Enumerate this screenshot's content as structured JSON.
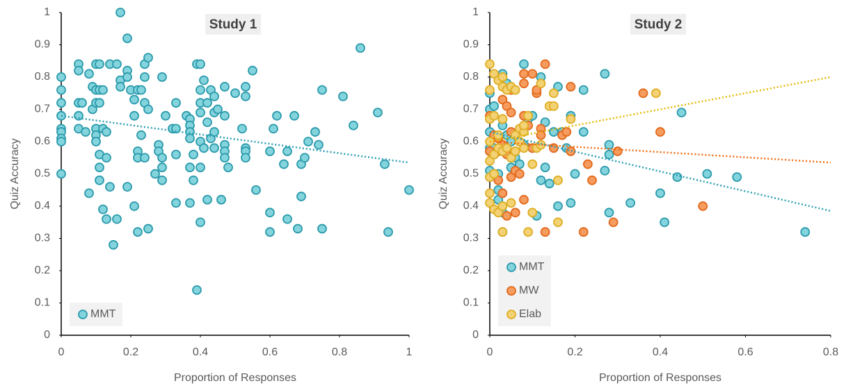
{
  "chart_data": [
    {
      "type": "scatter",
      "title": "Study 1",
      "xlabel": "Proportion of Responses",
      "ylabel": "Quiz Accuracy",
      "xlim": [
        0,
        1
      ],
      "ylim": [
        0,
        1
      ],
      "xticks": [
        0,
        0.2,
        0.4,
        0.6,
        0.8,
        1
      ],
      "yticks": [
        0,
        0.1,
        0.2,
        0.3,
        0.4,
        0.5,
        0.6,
        0.7,
        0.8,
        0.9,
        1
      ],
      "legend": "lower left",
      "series": [
        {
          "name": "MMT",
          "color": "#84d4dd",
          "edgecolor": "#2a9aab",
          "trend_color": "#2b9eb3",
          "trend": [
            0.68,
            0.535
          ],
          "x": [
            0,
            0,
            0,
            0,
            0,
            0,
            0,
            0,
            0,
            0.05,
            0.05,
            0.05,
            0.05,
            0.05,
            0.06,
            0.07,
            0.08,
            0.08,
            0.09,
            0.09,
            0.1,
            0.1,
            0.1,
            0.1,
            0.1,
            0.1,
            0.11,
            0.11,
            0.11,
            0.11,
            0.11,
            0.11,
            0.12,
            0.12,
            0.12,
            0.13,
            0.13,
            0.13,
            0.14,
            0.14,
            0.15,
            0.16,
            0.16,
            0.17,
            0.17,
            0.17,
            0.19,
            0.19,
            0.19,
            0.19,
            0.2,
            0.21,
            0.21,
            0.21,
            0.22,
            0.22,
            0.22,
            0.22,
            0.23,
            0.23,
            0.24,
            0.24,
            0.24,
            0.24,
            0.25,
            0.25,
            0.25,
            0.27,
            0.28,
            0.28,
            0.29,
            0.29,
            0.29,
            0.29,
            0.3,
            0.32,
            0.33,
            0.33,
            0.33,
            0.33,
            0.36,
            0.37,
            0.37,
            0.37,
            0.37,
            0.37,
            0.37,
            0.38,
            0.38,
            0.39,
            0.39,
            0.4,
            0.4,
            0.4,
            0.4,
            0.4,
            0.4,
            0.4,
            0.41,
            0.41,
            0.42,
            0.42,
            0.42,
            0.43,
            0.43,
            0.44,
            0.44,
            0.44,
            0.44,
            0.45,
            0.46,
            0.47,
            0.47,
            0.47,
            0.47,
            0.47,
            0.48,
            0.5,
            0.52,
            0.53,
            0.53,
            0.53,
            0.53,
            0.53,
            0.55,
            0.56,
            0.6,
            0.6,
            0.6,
            0.61,
            0.62,
            0.64,
            0.65,
            0.65,
            0.67,
            0.68,
            0.69,
            0.69,
            0.7,
            0.71,
            0.73,
            0.74,
            0.75,
            0.75,
            0.81,
            0.84,
            0.86,
            0.91,
            0.93,
            0.94,
            1
          ],
          "values": [
            0.8,
            0.76,
            0.72,
            0.68,
            0.64,
            0.63,
            0.61,
            0.6,
            0.5,
            0.84,
            0.82,
            0.72,
            0.68,
            0.64,
            0.72,
            0.63,
            0.81,
            0.44,
            0.77,
            0.7,
            0.84,
            0.76,
            0.72,
            0.64,
            0.62,
            0.6,
            0.84,
            0.76,
            0.72,
            0.56,
            0.52,
            0.48,
            0.76,
            0.64,
            0.39,
            0.63,
            0.55,
            0.36,
            0.84,
            0.46,
            0.28,
            0.84,
            0.36,
            1,
            0.79,
            0.77,
            0.92,
            0.82,
            0.8,
            0.46,
            0.76,
            0.73,
            0.68,
            0.4,
            0.76,
            0.57,
            0.55,
            0.32,
            0.62,
            0.76,
            0.84,
            0.8,
            0.72,
            0.55,
            0.86,
            0.7,
            0.33,
            0.5,
            0.59,
            0.57,
            0.8,
            0.55,
            0.52,
            0.48,
            0.68,
            0.64,
            0.64,
            0.72,
            0.56,
            0.41,
            0.68,
            0.67,
            0.65,
            0.63,
            0.61,
            0.52,
            0.41,
            0.56,
            0.48,
            0.84,
            0.14,
            0.84,
            0.76,
            0.72,
            0.69,
            0.6,
            0.52,
            0.35,
            0.58,
            0.79,
            0.72,
            0.66,
            0.42,
            0.76,
            0.61,
            0.74,
            0.69,
            0.63,
            0.58,
            0.7,
            0.42,
            0.77,
            0.68,
            0.59,
            0.57,
            0.55,
            0.52,
            0.75,
            0.64,
            0.77,
            0.74,
            0.58,
            0.57,
            0.55,
            0.82,
            0.45,
            0.57,
            0.38,
            0.32,
            0.64,
            0.68,
            0.53,
            0.57,
            0.36,
            0.68,
            0.33,
            0.53,
            0.43,
            0.55,
            0.6,
            0.63,
            0.59,
            0.76,
            0.33,
            0.74,
            0.65,
            0.89,
            0.69,
            0.53,
            0.32,
            0.45
          ]
        }
      ]
    },
    {
      "type": "scatter",
      "title": "Study 2",
      "xlabel": "Proportion of Responses",
      "ylabel": "Quiz Accuracy",
      "xlim": [
        0,
        0.8
      ],
      "ylim": [
        0,
        1
      ],
      "xticks": [
        0,
        0.2,
        0.4,
        0.6,
        0.8
      ],
      "yticks": [
        0,
        0.1,
        0.2,
        0.3,
        0.4,
        0.5,
        0.6,
        0.7,
        0.8,
        0.9,
        1
      ],
      "legend": "lower left",
      "series": [
        {
          "name": "MMT",
          "color": "#84d4dd",
          "edgecolor": "#2a9aab",
          "trend_color": "#2b9eb3",
          "trend": [
            0.63,
            0.385
          ],
          "x": [
            0,
            0,
            0,
            0,
            0,
            0,
            0,
            0.01,
            0.01,
            0.01,
            0.02,
            0.02,
            0.02,
            0.03,
            0.03,
            0.03,
            0.03,
            0.04,
            0.04,
            0.05,
            0.05,
            0.06,
            0.07,
            0.08,
            0.08,
            0.09,
            0.1,
            0.1,
            0.11,
            0.12,
            0.12,
            0.13,
            0.13,
            0.14,
            0.15,
            0.16,
            0.16,
            0.17,
            0.18,
            0.19,
            0.19,
            0.2,
            0.22,
            0.22,
            0.27,
            0.27,
            0.28,
            0.28,
            0.28,
            0.33,
            0.4,
            0.41,
            0.44,
            0.45,
            0.51,
            0.58,
            0.74
          ],
          "values": [
            0.75,
            0.7,
            0.63,
            0.58,
            0.57,
            0.51,
            0.49,
            0.71,
            0.58,
            0.56,
            0.5,
            0.45,
            0.42,
            0.81,
            0.65,
            0.38,
            0.32,
            0.78,
            0.62,
            0.6,
            0.52,
            0.55,
            0.53,
            0.84,
            0.59,
            0.67,
            0.68,
            0.58,
            0.37,
            0.8,
            0.48,
            0.66,
            0.52,
            0.47,
            0.63,
            0.77,
            0.4,
            0.63,
            0.58,
            0.68,
            0.41,
            0.5,
            0.76,
            0.63,
            0.81,
            0.51,
            0.59,
            0.56,
            0.38,
            0.41,
            0.44,
            0.35,
            0.49,
            0.69,
            0.5,
            0.49,
            0.32
          ]
        },
        {
          "name": "MW",
          "color": "#f59c5e",
          "edgecolor": "#e2691c",
          "trend_color": "#f06a10",
          "trend": [
            0.6,
            0.535
          ],
          "x": [
            0,
            0,
            0.01,
            0.01,
            0.01,
            0.02,
            0.02,
            0.02,
            0.03,
            0.03,
            0.03,
            0.03,
            0.04,
            0.04,
            0.04,
            0.05,
            0.05,
            0.05,
            0.05,
            0.06,
            0.06,
            0.06,
            0.07,
            0.07,
            0.08,
            0.08,
            0.08,
            0.08,
            0.09,
            0.1,
            0.1,
            0.11,
            0.11,
            0.12,
            0.12,
            0.13,
            0.13,
            0.15,
            0.17,
            0.18,
            0.19,
            0.19,
            0.22,
            0.23,
            0.24,
            0.29,
            0.3,
            0.36,
            0.4,
            0.5
          ],
          "values": [
            0.68,
            0.57,
            0.62,
            0.56,
            0.5,
            0.61,
            0.57,
            0.48,
            0.73,
            0.67,
            0.59,
            0.44,
            0.71,
            0.56,
            0.37,
            0.76,
            0.69,
            0.63,
            0.49,
            0.57,
            0.51,
            0.38,
            0.6,
            0.5,
            0.81,
            0.78,
            0.68,
            0.42,
            0.65,
            0.81,
            0.58,
            0.75,
            0.76,
            0.64,
            0.62,
            0.84,
            0.32,
            0.58,
            0.62,
            0.63,
            0.77,
            0.57,
            0.32,
            0.53,
            0.48,
            0.35,
            0.57,
            0.75,
            0.63,
            0.4
          ]
        },
        {
          "name": "Elab",
          "color": "#f3d276",
          "edgecolor": "#deae22",
          "trend_color": "#e6b800",
          "trend": [
            0.6,
            0.8
          ],
          "x": [
            0,
            0,
            0,
            0,
            0,
            0,
            0,
            0,
            0.01,
            0.01,
            0.01,
            0.01,
            0.01,
            0.02,
            0.02,
            0.02,
            0.02,
            0.03,
            0.03,
            0.03,
            0.03,
            0.03,
            0.03,
            0.04,
            0.04,
            0.05,
            0.05,
            0.05,
            0.06,
            0.06,
            0.06,
            0.07,
            0.07,
            0.08,
            0.08,
            0.08,
            0.09,
            0.09,
            0.1,
            0.1,
            0.11,
            0.12,
            0.12,
            0.14,
            0.15,
            0.15,
            0.16,
            0.16,
            0.19,
            0.39
          ],
          "values": [
            0.84,
            0.76,
            0.67,
            0.6,
            0.54,
            0.49,
            0.44,
            0.41,
            0.81,
            0.68,
            0.56,
            0.5,
            0.39,
            0.79,
            0.62,
            0.58,
            0.38,
            0.8,
            0.77,
            0.67,
            0.57,
            0.4,
            0.32,
            0.76,
            0.58,
            0.77,
            0.55,
            0.41,
            0.76,
            0.62,
            0.57,
            0.64,
            0.6,
            0.63,
            0.65,
            0.58,
            0.68,
            0.32,
            0.53,
            0.38,
            0.58,
            0.78,
            0.59,
            0.71,
            0.75,
            0.71,
            0.48,
            0.35,
            0.67,
            0.75
          ]
        }
      ]
    }
  ]
}
